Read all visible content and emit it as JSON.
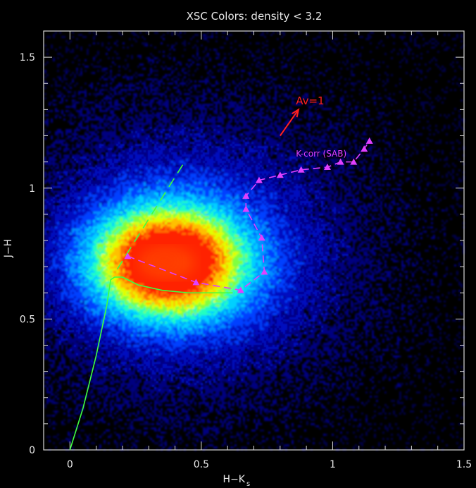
{
  "chart_data": {
    "type": "scatter",
    "title": "XSC Colors: density < 3.2",
    "xlabel_main": "H−K",
    "xlabel_sub": "s",
    "ylabel": "J−H",
    "xlim": [
      -0.1,
      1.5
    ],
    "ylim": [
      0,
      1.6
    ],
    "x_ticks": [
      0,
      0.5,
      1,
      1.5
    ],
    "x_tick_labels": [
      "0",
      "0.5",
      "1",
      "1.5"
    ],
    "y_ticks": [
      0,
      0.5,
      1,
      1.5
    ],
    "y_tick_labels": [
      "0",
      "0.5",
      "1",
      "1.5"
    ],
    "grid": false,
    "density_field": {
      "description_colors": [
        "#000080",
        "#0040ff",
        "#00c0ff",
        "#40ff80",
        "#ffff00",
        "#ff8000",
        "#ff2000"
      ],
      "peak": [
        0.37,
        0.72
      ]
    },
    "annotations": [
      {
        "text": "Av=1",
        "x": 0.86,
        "y": 1.32,
        "color": "#ff2020"
      },
      {
        "text": "K-corr (SAB)",
        "x": 0.86,
        "y": 1.12,
        "color": "#e040ff"
      }
    ],
    "reddening_vector": {
      "x0": 0.8,
      "y0": 1.2,
      "x1": 0.87,
      "y1": 1.3,
      "color": "#ff2020"
    },
    "kcorr_track": {
      "color": "#e040ff",
      "x": [
        0.22,
        0.48,
        0.65,
        0.74,
        0.73,
        0.67,
        0.67,
        0.72,
        0.8,
        0.88,
        0.98,
        1.03,
        1.08,
        1.12,
        1.14
      ],
      "y": [
        0.74,
        0.64,
        0.61,
        0.68,
        0.81,
        0.92,
        0.97,
        1.03,
        1.05,
        1.07,
        1.08,
        1.1,
        1.1,
        1.15,
        1.18
      ]
    },
    "green_solid": {
      "color": "#40ff40",
      "x": [
        0.0,
        0.05,
        0.1,
        0.14,
        0.155,
        0.17,
        0.2,
        0.26,
        0.35,
        0.45,
        0.55,
        0.62
      ],
      "y": [
        0.0,
        0.16,
        0.36,
        0.55,
        0.65,
        0.66,
        0.66,
        0.63,
        0.61,
        0.6,
        0.6,
        0.6
      ]
    },
    "green_dashed": {
      "color": "#40ff40",
      "x": [
        0.18,
        0.43
      ],
      "y": [
        0.69,
        1.09
      ]
    }
  }
}
